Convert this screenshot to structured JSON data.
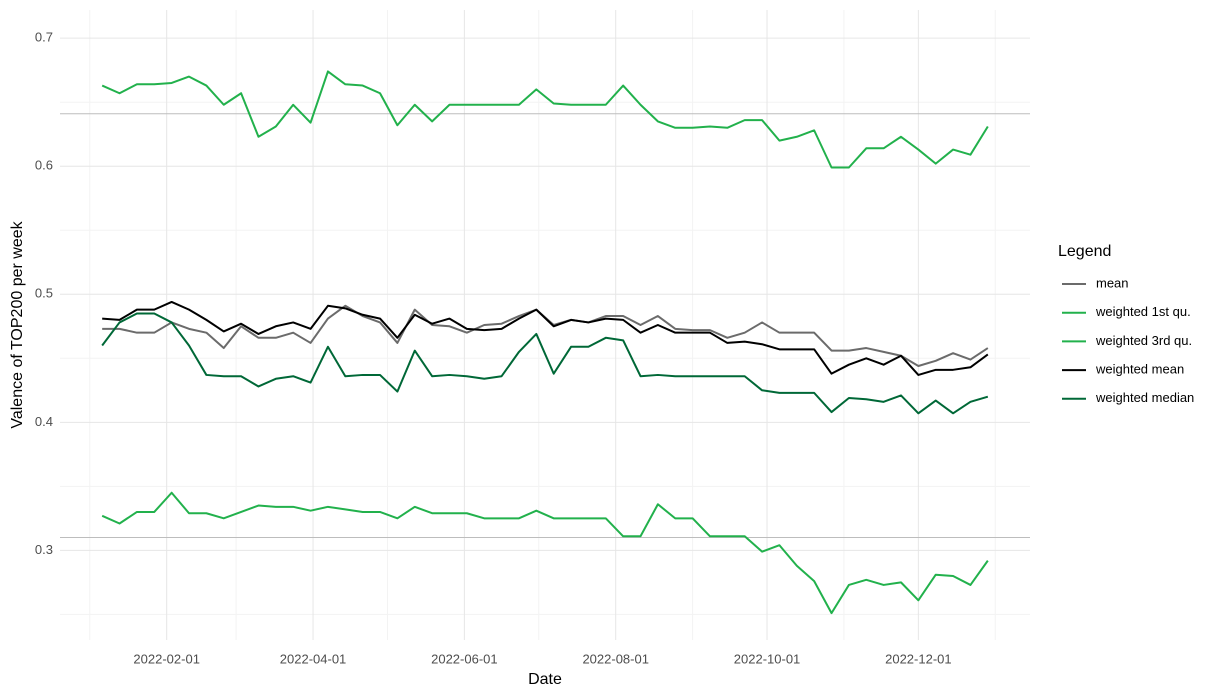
{
  "chart_data": {
    "type": "line",
    "x_label": "Date",
    "y_label": "Valence of TOP200 per week",
    "legend_title": "Legend",
    "legend_position": "right",
    "grid": true,
    "x": [
      "2022-01-06",
      "2022-01-13",
      "2022-01-20",
      "2022-01-27",
      "2022-02-03",
      "2022-02-10",
      "2022-02-17",
      "2022-02-24",
      "2022-03-03",
      "2022-03-10",
      "2022-03-17",
      "2022-03-24",
      "2022-03-31",
      "2022-04-07",
      "2022-04-14",
      "2022-04-21",
      "2022-04-28",
      "2022-05-05",
      "2022-05-12",
      "2022-05-19",
      "2022-05-26",
      "2022-06-02",
      "2022-06-09",
      "2022-06-16",
      "2022-06-23",
      "2022-06-30",
      "2022-07-07",
      "2022-07-14",
      "2022-07-21",
      "2022-07-28",
      "2022-08-04",
      "2022-08-11",
      "2022-08-18",
      "2022-08-25",
      "2022-09-01",
      "2022-09-08",
      "2022-09-15",
      "2022-09-22",
      "2022-09-29",
      "2022-10-06",
      "2022-10-13",
      "2022-10-20",
      "2022-10-27",
      "2022-11-03",
      "2022-11-10",
      "2022-11-17",
      "2022-11-24",
      "2022-12-01",
      "2022-12-08",
      "2022-12-15",
      "2022-12-22",
      "2022-12-29"
    ],
    "xlim": [
      "2021-12-20",
      "2023-01-15"
    ],
    "xticks": [
      "2022-02-01",
      "2022-04-01",
      "2022-06-01",
      "2022-08-01",
      "2022-10-01",
      "2022-12-01"
    ],
    "minor_xticks": [
      "2022-01-01",
      "2022-03-01",
      "2022-05-01",
      "2022-07-01",
      "2022-09-01",
      "2022-11-01",
      "2023-01-01"
    ],
    "ylim": [
      0.23,
      0.722
    ],
    "yticks": [
      0.3,
      0.4,
      0.5,
      0.6,
      0.7
    ],
    "minor_yticks": [
      0.25,
      0.35,
      0.45,
      0.55,
      0.65
    ],
    "hlines": [
      0.641,
      0.31
    ],
    "hline_color": "#bdbdbd",
    "series": [
      {
        "name": "mean",
        "color": "#6b6b6b",
        "values": [
          0.473,
          0.473,
          0.47,
          0.47,
          0.478,
          0.473,
          0.47,
          0.458,
          0.475,
          0.466,
          0.466,
          0.47,
          0.462,
          0.481,
          0.491,
          0.483,
          0.478,
          0.462,
          0.488,
          0.476,
          0.475,
          0.47,
          0.476,
          0.477,
          0.483,
          0.488,
          0.476,
          0.48,
          0.478,
          0.483,
          0.483,
          0.476,
          0.483,
          0.473,
          0.472,
          0.472,
          0.466,
          0.47,
          0.478,
          0.47,
          0.47,
          0.47,
          0.456,
          0.456,
          0.458,
          0.455,
          0.452,
          0.444,
          0.448,
          0.454,
          0.449,
          0.458
        ]
      },
      {
        "name": "weighted 1st qu.",
        "color": "#22b14c",
        "values": [
          0.327,
          0.321,
          0.33,
          0.33,
          0.345,
          0.329,
          0.329,
          0.325,
          0.33,
          0.335,
          0.334,
          0.334,
          0.331,
          0.334,
          0.332,
          0.33,
          0.33,
          0.325,
          0.334,
          0.329,
          0.329,
          0.329,
          0.325,
          0.325,
          0.325,
          0.331,
          0.325,
          0.325,
          0.325,
          0.325,
          0.311,
          0.311,
          0.336,
          0.325,
          0.325,
          0.311,
          0.311,
          0.311,
          0.299,
          0.304,
          0.288,
          0.276,
          0.251,
          0.273,
          0.277,
          0.273,
          0.275,
          0.261,
          0.281,
          0.28,
          0.273,
          0.292
        ]
      },
      {
        "name": "weighted 3rd qu.",
        "color": "#22b14c",
        "values": [
          0.663,
          0.657,
          0.664,
          0.664,
          0.665,
          0.67,
          0.663,
          0.648,
          0.657,
          0.623,
          0.631,
          0.648,
          0.634,
          0.674,
          0.664,
          0.663,
          0.657,
          0.632,
          0.648,
          0.635,
          0.648,
          0.648,
          0.648,
          0.648,
          0.648,
          0.66,
          0.649,
          0.648,
          0.648,
          0.648,
          0.663,
          0.648,
          0.635,
          0.63,
          0.63,
          0.631,
          0.63,
          0.636,
          0.636,
          0.62,
          0.623,
          0.628,
          0.599,
          0.599,
          0.614,
          0.614,
          0.623,
          0.613,
          0.602,
          0.613,
          0.609,
          0.631
        ]
      },
      {
        "name": "weighted mean",
        "color": "#000000",
        "values": [
          0.481,
          0.48,
          0.488,
          0.488,
          0.494,
          0.488,
          0.48,
          0.471,
          0.477,
          0.469,
          0.475,
          0.478,
          0.473,
          0.491,
          0.489,
          0.484,
          0.481,
          0.466,
          0.484,
          0.477,
          0.481,
          0.473,
          0.472,
          0.473,
          0.481,
          0.488,
          0.475,
          0.48,
          0.478,
          0.481,
          0.48,
          0.47,
          0.476,
          0.47,
          0.47,
          0.47,
          0.462,
          0.463,
          0.461,
          0.457,
          0.457,
          0.457,
          0.438,
          0.445,
          0.45,
          0.445,
          0.452,
          0.437,
          0.441,
          0.441,
          0.443,
          0.453
        ]
      },
      {
        "name": "weighted median",
        "color": "#006837",
        "values": [
          0.46,
          0.478,
          0.485,
          0.485,
          0.478,
          0.46,
          0.437,
          0.436,
          0.436,
          0.428,
          0.434,
          0.436,
          0.431,
          0.459,
          0.436,
          0.437,
          0.437,
          0.424,
          0.456,
          0.436,
          0.437,
          0.436,
          0.434,
          0.436,
          0.455,
          0.469,
          0.438,
          0.459,
          0.459,
          0.466,
          0.464,
          0.436,
          0.437,
          0.436,
          0.436,
          0.436,
          0.436,
          0.436,
          0.425,
          0.423,
          0.423,
          0.423,
          0.408,
          0.419,
          0.418,
          0.416,
          0.421,
          0.407,
          0.417,
          0.407,
          0.416,
          0.42
        ]
      }
    ]
  }
}
